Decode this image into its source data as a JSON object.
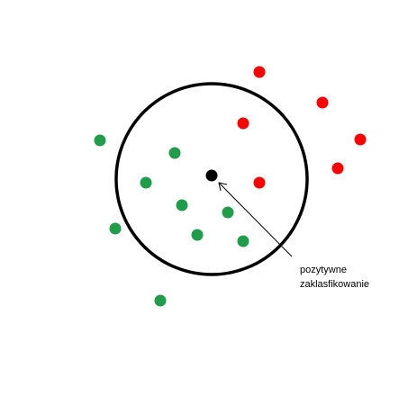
{
  "diagram": {
    "colors": {
      "positive": "#ff0000",
      "negative": "#1f9d4a",
      "query": "#000000",
      "circle": "#000000",
      "background": "#ffffff"
    },
    "annotation": {
      "line1": "pozytywne",
      "line2": "zaklasfikowanie"
    }
  }
}
